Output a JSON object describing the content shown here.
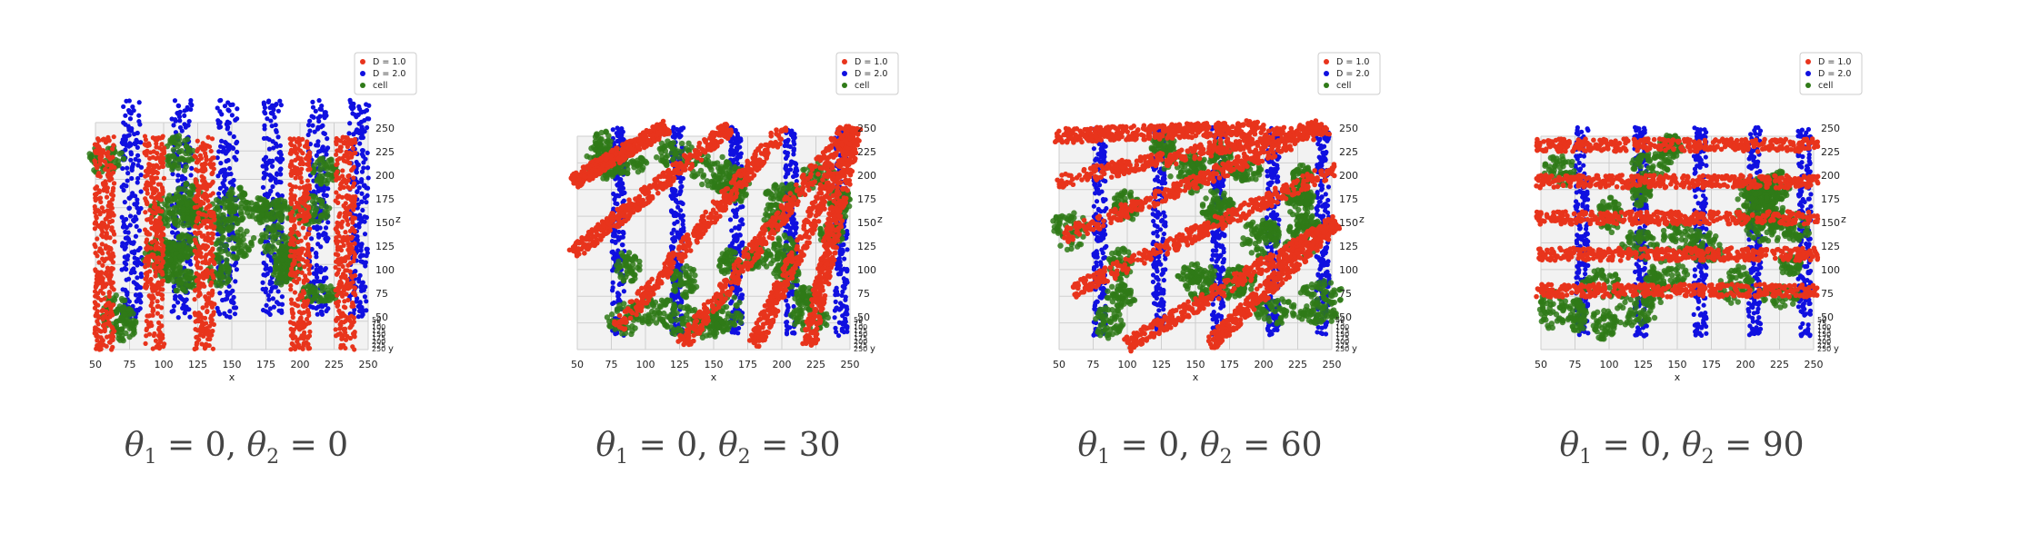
{
  "colors": {
    "D1": "#e8341c",
    "D2": "#1010e0",
    "cell": "#2f7a18",
    "grid": "#cfcfcf",
    "pane": "#f2f2f2"
  },
  "chart_data": [
    {
      "type": "scatter",
      "projection": "3d",
      "legend_position": "top-right",
      "legend": [
        "D = 1.0",
        "D = 2.0",
        "cell"
      ],
      "series": [
        {
          "name": "D = 1.0",
          "color": "#e8341c"
        },
        {
          "name": "D = 2.0",
          "color": "#1010e0"
        },
        {
          "name": "cell",
          "color": "#2f7a18"
        }
      ],
      "xlabel": "x",
      "ylabel": "y",
      "zlabel": "z",
      "x_ticks": [
        "50",
        "75",
        "100",
        "125",
        "150",
        "175",
        "200",
        "225",
        "250"
      ],
      "y_ticks": [
        "50",
        "75",
        "100",
        "125",
        "150",
        "175",
        "200",
        "225",
        "250"
      ],
      "z_ticks": [
        "50",
        "75",
        "100",
        "125",
        "150",
        "175",
        "200",
        "225",
        "250"
      ],
      "theta1": 0,
      "theta2": 0,
      "caption": {
        "t1": "θ",
        "s1": "1",
        "m1": " = 0, ",
        "t2": "θ",
        "s2": "2",
        "m2": " = 0"
      }
    },
    {
      "type": "scatter",
      "projection": "3d",
      "legend_position": "top-right",
      "legend": [
        "D = 1.0",
        "D = 2.0",
        "cell"
      ],
      "series": [
        {
          "name": "D = 1.0",
          "color": "#e8341c"
        },
        {
          "name": "D = 2.0",
          "color": "#1010e0"
        },
        {
          "name": "cell",
          "color": "#2f7a18"
        }
      ],
      "xlabel": "x",
      "ylabel": "y",
      "zlabel": "z",
      "x_ticks": [
        "50",
        "75",
        "100",
        "125",
        "150",
        "175",
        "200",
        "225",
        "250"
      ],
      "y_ticks": [
        "50",
        "75",
        "100",
        "125",
        "150",
        "175",
        "200",
        "225",
        "250"
      ],
      "z_ticks": [
        "50",
        "75",
        "100",
        "125",
        "150",
        "175",
        "200",
        "225",
        "250"
      ],
      "theta1": 0,
      "theta2": 30,
      "caption": {
        "t1": "θ",
        "s1": "1",
        "m1": " = 0, ",
        "t2": "θ",
        "s2": "2",
        "m2": " = 30"
      }
    },
    {
      "type": "scatter",
      "projection": "3d",
      "legend_position": "top-right",
      "legend": [
        "D = 1.0",
        "D = 2.0",
        "cell"
      ],
      "series": [
        {
          "name": "D = 1.0",
          "color": "#e8341c"
        },
        {
          "name": "D = 2.0",
          "color": "#1010e0"
        },
        {
          "name": "cell",
          "color": "#2f7a18"
        }
      ],
      "xlabel": "x",
      "ylabel": "y",
      "zlabel": "z",
      "x_ticks": [
        "50",
        "75",
        "100",
        "125",
        "150",
        "175",
        "200",
        "225",
        "250"
      ],
      "y_ticks": [
        "50",
        "75",
        "100",
        "125",
        "150",
        "175",
        "200",
        "225",
        "250"
      ],
      "z_ticks": [
        "50",
        "75",
        "100",
        "125",
        "150",
        "175",
        "200",
        "225",
        "250"
      ],
      "theta1": 0,
      "theta2": 60,
      "caption": {
        "t1": "θ",
        "s1": "1",
        "m1": " = 0, ",
        "t2": "θ",
        "s2": "2",
        "m2": " = 60"
      }
    },
    {
      "type": "scatter",
      "projection": "3d",
      "legend_position": "top-right",
      "legend": [
        "D = 1.0",
        "D = 2.0",
        "cell"
      ],
      "series": [
        {
          "name": "D = 1.0",
          "color": "#e8341c"
        },
        {
          "name": "D = 2.0",
          "color": "#1010e0"
        },
        {
          "name": "cell",
          "color": "#2f7a18"
        }
      ],
      "xlabel": "x",
      "ylabel": "y",
      "zlabel": "z",
      "x_ticks": [
        "50",
        "75",
        "100",
        "125",
        "150",
        "175",
        "200",
        "225",
        "250"
      ],
      "y_ticks": [
        "50",
        "75",
        "100",
        "125",
        "150",
        "175",
        "200",
        "225",
        "250"
      ],
      "z_ticks": [
        "50",
        "75",
        "100",
        "125",
        "150",
        "175",
        "200",
        "225",
        "250"
      ],
      "theta1": 0,
      "theta2": 90,
      "caption": {
        "t1": "θ",
        "s1": "1",
        "m1": " = 0, ",
        "t2": "θ",
        "s2": "2",
        "m2": " = 90"
      }
    }
  ]
}
